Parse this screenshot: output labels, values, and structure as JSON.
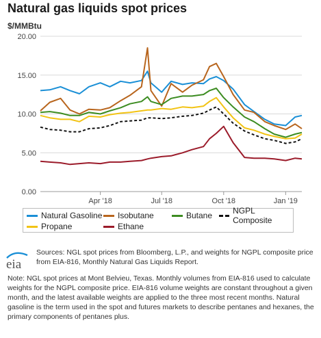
{
  "header": {
    "title": "Natural gas liquids spot prices",
    "unit": "$/MMBtu"
  },
  "chart_data": {
    "type": "line",
    "title": "Natural gas liquids spot prices",
    "ylabel": "$/MMBtu",
    "ylim": [
      0,
      20
    ],
    "yticks": [
      "0.00",
      "5.00",
      "10.00",
      "15.00",
      "20.00"
    ],
    "xlim": [
      "2018-01-02",
      "2019-01-25"
    ],
    "xticks": [
      {
        "label": "Apr '18",
        "date": "2018-04-01"
      },
      {
        "label": "Jul '18",
        "date": "2018-07-01"
      },
      {
        "label": "Oct '18",
        "date": "2018-10-01"
      },
      {
        "label": "Jan '19",
        "date": "2019-01-01"
      }
    ],
    "grid": "horizontal",
    "legend_position": "bottom",
    "dates": [
      "2018-01-02",
      "2018-01-16",
      "2018-02-01",
      "2018-02-15",
      "2018-03-01",
      "2018-03-15",
      "2018-04-01",
      "2018-04-15",
      "2018-05-01",
      "2018-05-15",
      "2018-06-01",
      "2018-06-10",
      "2018-06-15",
      "2018-07-01",
      "2018-07-15",
      "2018-08-01",
      "2018-08-15",
      "2018-09-01",
      "2018-09-10",
      "2018-09-20",
      "2018-10-01",
      "2018-10-15",
      "2018-11-01",
      "2018-11-15",
      "2018-12-01",
      "2018-12-15",
      "2019-01-01",
      "2019-01-15",
      "2019-01-25"
    ],
    "series": [
      {
        "name": "Natural Gasoline",
        "color": "#1a8fd6",
        "dash": false,
        "values": [
          13.0,
          13.1,
          13.5,
          13.0,
          12.6,
          13.5,
          14.0,
          13.5,
          14.2,
          14.0,
          14.3,
          15.5,
          14.0,
          12.8,
          14.2,
          13.8,
          14.0,
          13.9,
          14.5,
          14.8,
          14.3,
          13.2,
          11.2,
          10.3,
          9.3,
          8.7,
          8.5,
          9.6,
          9.8
        ]
      },
      {
        "name": "Isobutane",
        "color": "#b8651d",
        "dash": false,
        "values": [
          10.4,
          11.5,
          12.0,
          10.5,
          10.0,
          10.6,
          10.5,
          10.8,
          11.7,
          12.4,
          13.5,
          18.5,
          13.0,
          11.0,
          13.9,
          12.8,
          13.7,
          14.4,
          16.1,
          16.5,
          14.8,
          12.5,
          10.5,
          10.2,
          9.0,
          8.5,
          8.0,
          8.7,
          8.1
        ]
      },
      {
        "name": "Butane",
        "color": "#3c8c21",
        "dash": false,
        "values": [
          10.2,
          10.3,
          10.1,
          9.8,
          9.8,
          10.2,
          10.0,
          10.4,
          10.8,
          11.3,
          11.6,
          12.2,
          11.6,
          11.2,
          12.0,
          12.3,
          12.3,
          12.5,
          13.0,
          13.3,
          12.1,
          10.9,
          9.6,
          9.0,
          8.1,
          7.4,
          7.0,
          7.4,
          7.6
        ]
      },
      {
        "name": "NGPL Composite",
        "color": "#111111",
        "dash": true,
        "values": [
          8.3,
          8.0,
          7.9,
          7.7,
          7.7,
          8.1,
          8.2,
          8.5,
          9.0,
          9.1,
          9.2,
          9.5,
          9.5,
          9.4,
          9.5,
          9.7,
          9.8,
          10.1,
          10.5,
          10.9,
          10.0,
          8.8,
          7.8,
          7.3,
          6.8,
          6.6,
          6.2,
          6.4,
          6.8
        ]
      },
      {
        "name": "Propane",
        "color": "#f2c314",
        "dash": false,
        "values": [
          9.8,
          9.5,
          9.3,
          9.3,
          9.0,
          9.7,
          9.6,
          9.9,
          10.1,
          10.2,
          10.4,
          10.5,
          10.5,
          10.7,
          10.6,
          10.9,
          10.8,
          11.0,
          11.6,
          12.1,
          10.9,
          9.5,
          8.2,
          7.9,
          7.4,
          7.1,
          6.8,
          6.9,
          7.4
        ]
      },
      {
        "name": "Ethane",
        "color": "#9b1b2a",
        "dash": false,
        "values": [
          3.9,
          3.8,
          3.7,
          3.5,
          3.6,
          3.7,
          3.6,
          3.8,
          3.8,
          3.9,
          4.0,
          4.2,
          4.3,
          4.5,
          4.6,
          5.0,
          5.4,
          5.8,
          6.8,
          7.5,
          8.4,
          6.3,
          4.4,
          4.3,
          4.3,
          4.2,
          4.0,
          4.3,
          4.2
        ]
      }
    ]
  },
  "notes": {
    "sources": "Sources: NGL spot prices from Bloomberg, L.P., and weights for NGPL composite price from EIA-816, Monthly Natural Gas Liquids Report.",
    "note": "Note: NGL spot prices at Mont Belvieu, Texas. Monthly volumes from EIA-816 used to calculate weights for the NGPL composite price. EIA-816 volume weights are constant throughout a given month, and the latest available weights are applied to the three most recent months. Natural gasoline is the term used in the spot and futures markets to describe pentanes and hexanes, the primary components of pentanes plus.",
    "logo_text": "eia"
  }
}
